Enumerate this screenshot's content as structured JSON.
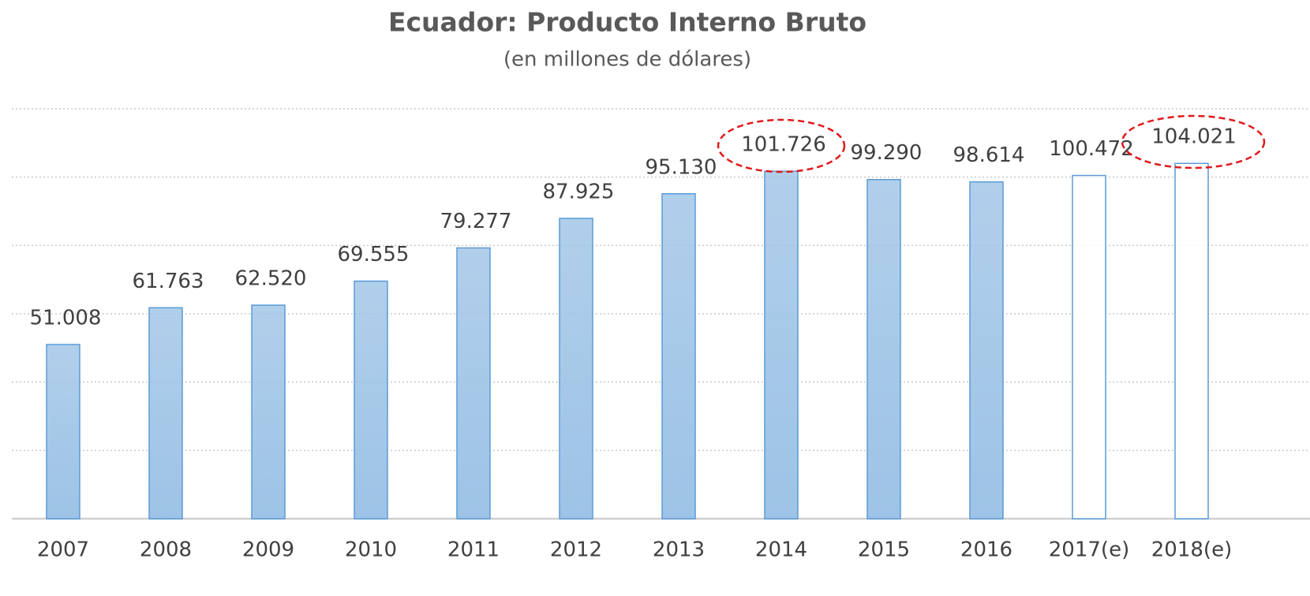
{
  "chart_data": {
    "type": "bar",
    "title": "Ecuador: Producto Interno Bruto",
    "subtitle": "(en millones de dólares)",
    "categories": [
      "2007",
      "2008",
      "2009",
      "2010",
      "2011",
      "2012",
      "2013",
      "2014",
      "2015",
      "2016",
      "2017(e)",
      "2018(e)"
    ],
    "values": [
      51008,
      61763,
      62520,
      69555,
      79277,
      87925,
      95130,
      101726,
      99290,
      98614,
      100472,
      104021
    ],
    "value_labels": [
      "51.008",
      "61.763",
      "62.520",
      "69.555",
      "79.277",
      "87.925",
      "95.130",
      "101.726",
      "99.290",
      "98.614",
      "100.472",
      "104.021"
    ],
    "colors": [
      "#9dc3e6",
      "#9dc3e6",
      "#9dc3e6",
      "#9dc3e6",
      "#9dc3e6",
      "#9dc3e6",
      "#9dc3e6",
      "#9dc3e6",
      "#9dc3e6",
      "#9dc3e6",
      "#ffffff",
      "#ffffff"
    ],
    "edge_color": "#5b9bd5",
    "ylim": [
      0,
      120000
    ],
    "yticks": [
      0,
      20000,
      40000,
      60000,
      80000,
      100000,
      120000
    ],
    "grid": true
  }
}
